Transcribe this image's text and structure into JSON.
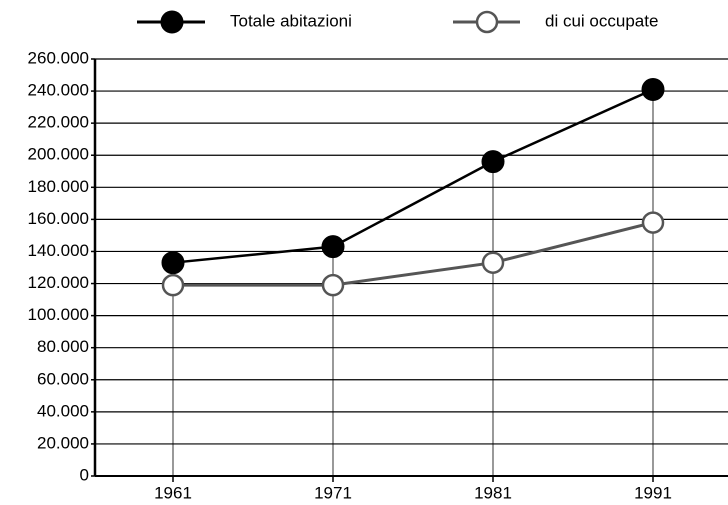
{
  "chart_data": {
    "type": "line",
    "categories": [
      "1961",
      "1971",
      "1981",
      "1991"
    ],
    "series": [
      {
        "name": "Totale abitazioni",
        "color": "#000000",
        "marker": "filled",
        "values": [
          133000,
          143000,
          196000,
          241000
        ]
      },
      {
        "name": "di cui occupate",
        "color": "#555555",
        "marker": "open",
        "values": [
          119000,
          119000,
          133000,
          158000
        ]
      }
    ],
    "ylim": [
      0,
      260000
    ],
    "yticks": [
      0,
      {
        "value": 20000,
        "label": "20.000"
      },
      {
        "value": 40000,
        "label": "40.000"
      },
      {
        "value": 60000,
        "label": "60.000"
      },
      {
        "value": 80000,
        "label": "80.000"
      },
      {
        "value": 100000,
        "label": "100.000"
      },
      {
        "value": 120000,
        "label": "120.000"
      },
      {
        "value": 140000,
        "label": "140.000"
      },
      {
        "value": 160000,
        "label": "160.000"
      },
      {
        "value": 180000,
        "label": "180.000"
      },
      {
        "value": 200000,
        "label": "200.000"
      },
      {
        "value": 220000,
        "label": "220.000"
      },
      {
        "value": 240000,
        "label": "240.000"
      },
      {
        "value": 260000,
        "label": "260.000"
      }
    ],
    "grid": true,
    "legend": "top"
  }
}
